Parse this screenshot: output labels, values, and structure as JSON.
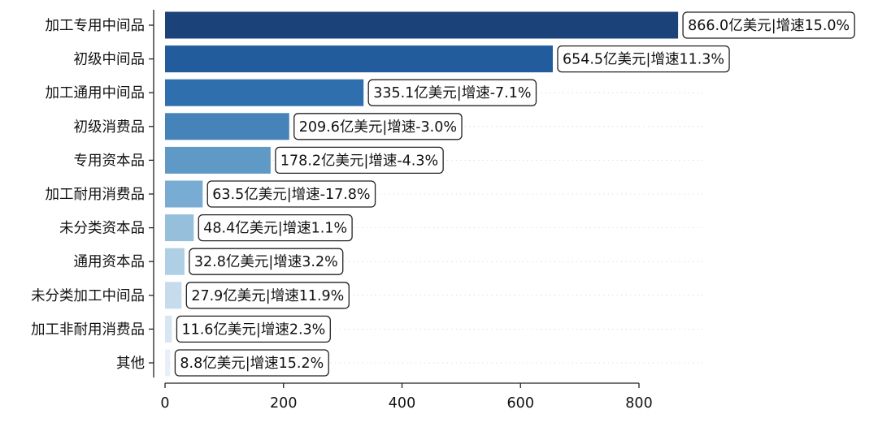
{
  "chart_data": {
    "type": "bar",
    "orientation": "horizontal",
    "title": "",
    "xlabel": "",
    "ylabel": "",
    "xlim": [
      0,
      900
    ],
    "x_ticks": [
      0,
      200,
      400,
      600,
      800
    ],
    "grid": "horizontal dotted",
    "legend": "none",
    "categories": [
      "加工专用中间品",
      "初级中间品",
      "加工通用中间品",
      "初级消费品",
      "专用资本品",
      "加工耐用消费品",
      "未分类资本品",
      "通用资本品",
      "未分类加工中间品",
      "加工非耐用消费品",
      "其他"
    ],
    "values": [
      866.0,
      654.5,
      335.1,
      209.6,
      178.2,
      63.5,
      48.4,
      32.8,
      27.9,
      11.6,
      8.8
    ],
    "data_labels": [
      "866.0亿美元|增速15.0%",
      "654.5亿美元|增速11.3%",
      "335.1亿美元|增速-7.1%",
      "209.6亿美元|增速-3.0%",
      "178.2亿美元|增速-4.3%",
      "63.5亿美元|增速-17.8%",
      "48.4亿美元|增速1.1%",
      "32.8亿美元|增速3.2%",
      "27.9亿美元|增速11.9%",
      "11.6亿美元|增速2.3%",
      "8.8亿美元|增速15.2%"
    ],
    "colors": [
      "#1b4379",
      "#225c9d",
      "#2f6fad",
      "#4583b9",
      "#5f9ac7",
      "#79acd2",
      "#96bfdc",
      "#afcfe5",
      "#c6dced",
      "#d8e6f3",
      "#e8eff8"
    ]
  }
}
